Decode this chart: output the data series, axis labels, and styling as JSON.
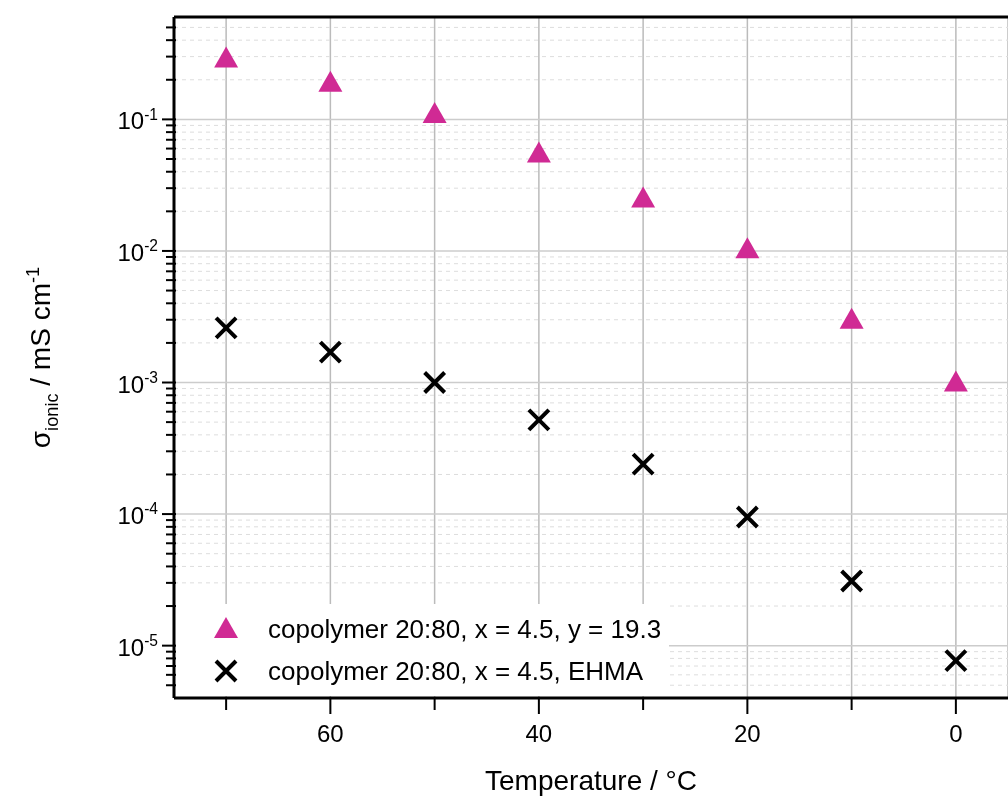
{
  "chart_data": {
    "type": "scatter",
    "xlabel": "Temperature / °C",
    "ylabel": "σ$_{ionic}$ / mS cm$^{-1}$",
    "xlim": [
      75,
      -5
    ],
    "xticks": [
      {
        "value": 70,
        "label": null
      },
      60,
      {
        "value": 50,
        "label": null
      },
      40,
      {
        "value": 30,
        "label": null
      },
      20,
      {
        "value": 10,
        "label": null
      },
      0
    ],
    "ylim": [
      4e-06,
      0.6
    ],
    "yticks": [
      {
        "value": 5e-06,
        "label": null
      },
      {
        "value": 6e-06,
        "label": null
      },
      {
        "value": 7e-06,
        "label": null
      },
      {
        "value": 8e-06,
        "label": null
      },
      {
        "value": 9e-06,
        "label": null
      },
      {
        "value": 1e-05,
        "label": "10$^{-5}$"
      },
      {
        "value": 2e-05,
        "label": null
      },
      {
        "value": 3e-05,
        "label": null
      },
      {
        "value": 4e-05,
        "label": null
      },
      {
        "value": 5e-05,
        "label": null
      },
      {
        "value": 6e-05,
        "label": null
      },
      {
        "value": 7e-05,
        "label": null
      },
      {
        "value": 8e-05,
        "label": null
      },
      {
        "value": 9e-05,
        "label": null
      },
      {
        "value": 0.0001,
        "label": "10$^{-4}$"
      },
      {
        "value": 0.0002,
        "label": null
      },
      {
        "value": 0.0003,
        "label": null
      },
      {
        "value": 0.0004,
        "label": null
      },
      {
        "value": 0.0005,
        "label": null
      },
      {
        "value": 0.0006,
        "label": null
      },
      {
        "value": 0.0007,
        "label": null
      },
      {
        "value": 0.0008,
        "label": null
      },
      {
        "value": 0.0009,
        "label": null
      },
      {
        "value": 0.001,
        "label": "10$^{-3}$"
      },
      {
        "value": 0.002,
        "label": null
      },
      {
        "value": 0.003,
        "label": null
      },
      {
        "value": 0.004,
        "label": null
      },
      {
        "value": 0.005,
        "label": null
      },
      {
        "value": 0.006,
        "label": null
      },
      {
        "value": 0.007,
        "label": null
      },
      {
        "value": 0.008,
        "label": null
      },
      {
        "value": 0.009,
        "label": null
      },
      {
        "value": 0.01,
        "label": "10$^{-2}$"
      },
      {
        "value": 0.02,
        "label": null
      },
      {
        "value": 0.03,
        "label": null
      },
      {
        "value": 0.04,
        "label": null
      },
      {
        "value": 0.05,
        "label": null
      },
      {
        "value": 0.06,
        "label": null
      },
      {
        "value": 0.07,
        "label": null
      },
      {
        "value": 0.08,
        "label": null
      },
      {
        "value": 0.09,
        "label": null
      },
      {
        "value": 0.1,
        "label": "10$^{-1}$"
      },
      {
        "value": 0.2,
        "label": null
      },
      {
        "value": 0.3,
        "label": null
      },
      {
        "value": 0.4,
        "label": null
      },
      {
        "value": 0.5,
        "label": null
      }
    ],
    "log": "y",
    "grid": true,
    "legend": "bottom left",
    "x": [
      70,
      60,
      50,
      40,
      30,
      20,
      10,
      0
    ],
    "series": [
      {
        "name": "copolymer 20:80, x = 4.5, y = 19.3",
        "color": "#d02a94",
        "marker": "triangle",
        "values": [
          0.29,
          0.19,
          0.11,
          0.055,
          0.025,
          0.0103,
          0.003,
          0.001
        ]
      },
      {
        "name": "copolymer 20:80, x = 4.5, EHMA",
        "color": "#000000",
        "marker": "cross",
        "values": [
          0.0026,
          0.0017,
          0.001,
          0.00052,
          0.00024,
          9.5e-05,
          3.1e-05,
          7.7e-06
        ]
      }
    ]
  }
}
